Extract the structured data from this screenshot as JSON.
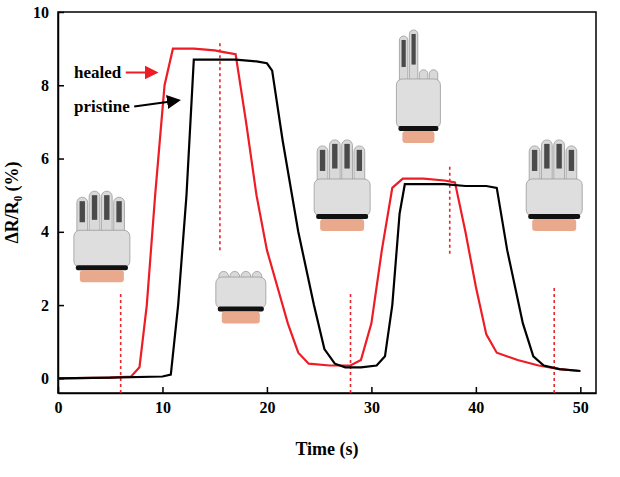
{
  "chart_data": {
    "type": "line",
    "x_label": "Time (s)",
    "y_label": "ΔR/R₀ (%)",
    "xlim": [
      0,
      51.5
    ],
    "ylim": [
      -0.4,
      10
    ],
    "xticks": [
      0,
      10,
      20,
      30,
      40,
      50
    ],
    "yticks": [
      0,
      2,
      4,
      6,
      8,
      10
    ],
    "legend": "upper left",
    "series": [
      {
        "name": "healed",
        "color": "#ee1c25",
        "x": [
          0,
          5,
          7,
          7.8,
          8.5,
          9.3,
          10.2,
          11,
          13,
          15,
          16,
          17,
          18,
          19,
          20,
          21,
          22,
          23,
          24,
          26,
          28,
          29,
          30,
          31,
          32,
          33,
          35,
          37,
          38,
          39,
          40,
          41,
          42,
          44,
          46,
          48,
          50
        ],
        "values": [
          0,
          0.02,
          0.05,
          0.3,
          2,
          5,
          8,
          9,
          9,
          8.95,
          8.9,
          8.85,
          7,
          5,
          3.5,
          2.5,
          1.5,
          0.7,
          0.4,
          0.35,
          0.35,
          0.5,
          1.5,
          3.5,
          5.2,
          5.45,
          5.45,
          5.4,
          5.35,
          4,
          2.5,
          1.2,
          0.7,
          0.5,
          0.35,
          0.25,
          0.2
        ]
      },
      {
        "name": "pristine",
        "color": "#000000",
        "x": [
          0,
          5,
          10,
          10.8,
          11.5,
          12.3,
          13,
          15,
          17,
          19,
          20,
          20.5,
          21.5,
          23,
          24.5,
          25.5,
          26.5,
          27.5,
          29,
          30.5,
          31.3,
          32,
          32.7,
          33.2,
          35,
          37,
          39,
          41,
          42,
          43,
          44.5,
          45.5,
          46.5,
          48,
          50
        ],
        "values": [
          0,
          0.02,
          0.05,
          0.1,
          2,
          5,
          8.7,
          8.7,
          8.7,
          8.65,
          8.6,
          8.4,
          6.5,
          4,
          2,
          0.8,
          0.4,
          0.3,
          0.3,
          0.35,
          0.6,
          2,
          4.5,
          5.3,
          5.3,
          5.3,
          5.25,
          5.25,
          5.2,
          3.5,
          1.5,
          0.6,
          0.35,
          0.25,
          0.2
        ]
      }
    ],
    "vlines": [
      {
        "x": 6,
        "y": [
          -0.4,
          2.3
        ]
      },
      {
        "x": 15.5,
        "y": [
          3.5,
          9.2
        ]
      },
      {
        "x": 28,
        "y": [
          -0.4,
          2.3
        ]
      },
      {
        "x": 37.5,
        "y": [
          3.4,
          5.8
        ]
      },
      {
        "x": 47.5,
        "y": [
          -0.4,
          2.5
        ]
      }
    ]
  }
}
